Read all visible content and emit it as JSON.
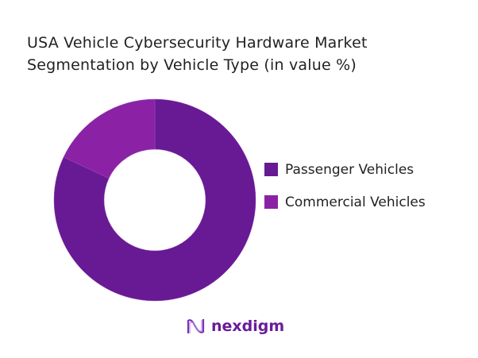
{
  "chart_data": {
    "type": "pie",
    "donut": true,
    "title": "USA Vehicle Cybersecurity Hardware Market Segmentation by Vehicle Type (in value %)",
    "title_lines": [
      "USA Vehicle Cybersecurity Hardware Market",
      "Segmentation by Vehicle Type (in value %)"
    ],
    "categories": [
      "Passenger Vehicles",
      "Commercial Vehicles"
    ],
    "values": [
      82,
      18
    ],
    "colors": [
      "#671A94",
      "#8B22A6"
    ],
    "legend_position": "right"
  },
  "brand": {
    "name": "nexdigm"
  }
}
